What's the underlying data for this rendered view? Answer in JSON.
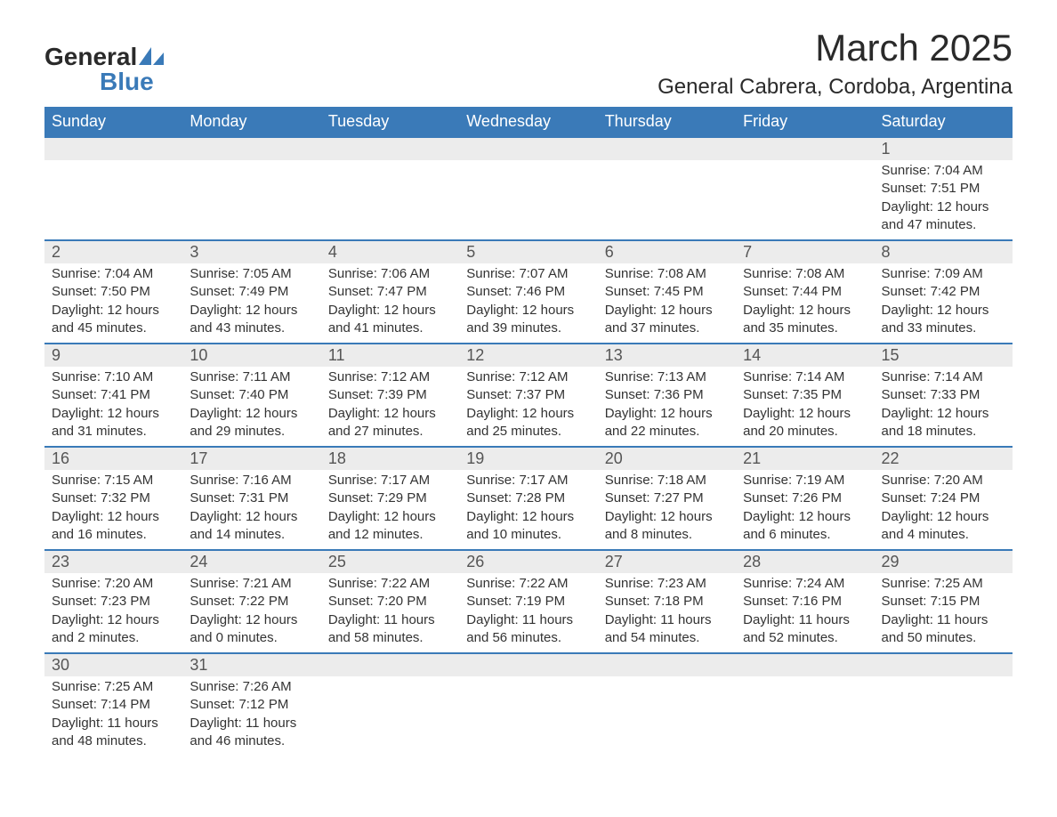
{
  "brand": {
    "text_top": "General",
    "text_bottom": "Blue",
    "accent_color": "#3a7ab8"
  },
  "title": "March 2025",
  "location": "General Cabrera, Cordoba, Argentina",
  "weekdays": [
    "Sunday",
    "Monday",
    "Tuesday",
    "Wednesday",
    "Thursday",
    "Friday",
    "Saturday"
  ],
  "style": {
    "header_bg": "#3a7ab8",
    "header_fg": "#ffffff",
    "daynum_bg": "#ececec",
    "row_divider": "#3a7ab8",
    "body_bg": "#ffffff",
    "text_color": "#333333",
    "title_fontsize": 42,
    "location_fontsize": 24,
    "weekday_fontsize": 18,
    "daynum_fontsize": 18,
    "info_fontsize": 15
  },
  "weeks": [
    [
      null,
      null,
      null,
      null,
      null,
      null,
      {
        "n": "1",
        "sr": "Sunrise: 7:04 AM",
        "ss": "Sunset: 7:51 PM",
        "dl": "Daylight: 12 hours and 47 minutes."
      }
    ],
    [
      {
        "n": "2",
        "sr": "Sunrise: 7:04 AM",
        "ss": "Sunset: 7:50 PM",
        "dl": "Daylight: 12 hours and 45 minutes."
      },
      {
        "n": "3",
        "sr": "Sunrise: 7:05 AM",
        "ss": "Sunset: 7:49 PM",
        "dl": "Daylight: 12 hours and 43 minutes."
      },
      {
        "n": "4",
        "sr": "Sunrise: 7:06 AM",
        "ss": "Sunset: 7:47 PM",
        "dl": "Daylight: 12 hours and 41 minutes."
      },
      {
        "n": "5",
        "sr": "Sunrise: 7:07 AM",
        "ss": "Sunset: 7:46 PM",
        "dl": "Daylight: 12 hours and 39 minutes."
      },
      {
        "n": "6",
        "sr": "Sunrise: 7:08 AM",
        "ss": "Sunset: 7:45 PM",
        "dl": "Daylight: 12 hours and 37 minutes."
      },
      {
        "n": "7",
        "sr": "Sunrise: 7:08 AM",
        "ss": "Sunset: 7:44 PM",
        "dl": "Daylight: 12 hours and 35 minutes."
      },
      {
        "n": "8",
        "sr": "Sunrise: 7:09 AM",
        "ss": "Sunset: 7:42 PM",
        "dl": "Daylight: 12 hours and 33 minutes."
      }
    ],
    [
      {
        "n": "9",
        "sr": "Sunrise: 7:10 AM",
        "ss": "Sunset: 7:41 PM",
        "dl": "Daylight: 12 hours and 31 minutes."
      },
      {
        "n": "10",
        "sr": "Sunrise: 7:11 AM",
        "ss": "Sunset: 7:40 PM",
        "dl": "Daylight: 12 hours and 29 minutes."
      },
      {
        "n": "11",
        "sr": "Sunrise: 7:12 AM",
        "ss": "Sunset: 7:39 PM",
        "dl": "Daylight: 12 hours and 27 minutes."
      },
      {
        "n": "12",
        "sr": "Sunrise: 7:12 AM",
        "ss": "Sunset: 7:37 PM",
        "dl": "Daylight: 12 hours and 25 minutes."
      },
      {
        "n": "13",
        "sr": "Sunrise: 7:13 AM",
        "ss": "Sunset: 7:36 PM",
        "dl": "Daylight: 12 hours and 22 minutes."
      },
      {
        "n": "14",
        "sr": "Sunrise: 7:14 AM",
        "ss": "Sunset: 7:35 PM",
        "dl": "Daylight: 12 hours and 20 minutes."
      },
      {
        "n": "15",
        "sr": "Sunrise: 7:14 AM",
        "ss": "Sunset: 7:33 PM",
        "dl": "Daylight: 12 hours and 18 minutes."
      }
    ],
    [
      {
        "n": "16",
        "sr": "Sunrise: 7:15 AM",
        "ss": "Sunset: 7:32 PM",
        "dl": "Daylight: 12 hours and 16 minutes."
      },
      {
        "n": "17",
        "sr": "Sunrise: 7:16 AM",
        "ss": "Sunset: 7:31 PM",
        "dl": "Daylight: 12 hours and 14 minutes."
      },
      {
        "n": "18",
        "sr": "Sunrise: 7:17 AM",
        "ss": "Sunset: 7:29 PM",
        "dl": "Daylight: 12 hours and 12 minutes."
      },
      {
        "n": "19",
        "sr": "Sunrise: 7:17 AM",
        "ss": "Sunset: 7:28 PM",
        "dl": "Daylight: 12 hours and 10 minutes."
      },
      {
        "n": "20",
        "sr": "Sunrise: 7:18 AM",
        "ss": "Sunset: 7:27 PM",
        "dl": "Daylight: 12 hours and 8 minutes."
      },
      {
        "n": "21",
        "sr": "Sunrise: 7:19 AM",
        "ss": "Sunset: 7:26 PM",
        "dl": "Daylight: 12 hours and 6 minutes."
      },
      {
        "n": "22",
        "sr": "Sunrise: 7:20 AM",
        "ss": "Sunset: 7:24 PM",
        "dl": "Daylight: 12 hours and 4 minutes."
      }
    ],
    [
      {
        "n": "23",
        "sr": "Sunrise: 7:20 AM",
        "ss": "Sunset: 7:23 PM",
        "dl": "Daylight: 12 hours and 2 minutes."
      },
      {
        "n": "24",
        "sr": "Sunrise: 7:21 AM",
        "ss": "Sunset: 7:22 PM",
        "dl": "Daylight: 12 hours and 0 minutes."
      },
      {
        "n": "25",
        "sr": "Sunrise: 7:22 AM",
        "ss": "Sunset: 7:20 PM",
        "dl": "Daylight: 11 hours and 58 minutes."
      },
      {
        "n": "26",
        "sr": "Sunrise: 7:22 AM",
        "ss": "Sunset: 7:19 PM",
        "dl": "Daylight: 11 hours and 56 minutes."
      },
      {
        "n": "27",
        "sr": "Sunrise: 7:23 AM",
        "ss": "Sunset: 7:18 PM",
        "dl": "Daylight: 11 hours and 54 minutes."
      },
      {
        "n": "28",
        "sr": "Sunrise: 7:24 AM",
        "ss": "Sunset: 7:16 PM",
        "dl": "Daylight: 11 hours and 52 minutes."
      },
      {
        "n": "29",
        "sr": "Sunrise: 7:25 AM",
        "ss": "Sunset: 7:15 PM",
        "dl": "Daylight: 11 hours and 50 minutes."
      }
    ],
    [
      {
        "n": "30",
        "sr": "Sunrise: 7:25 AM",
        "ss": "Sunset: 7:14 PM",
        "dl": "Daylight: 11 hours and 48 minutes."
      },
      {
        "n": "31",
        "sr": "Sunrise: 7:26 AM",
        "ss": "Sunset: 7:12 PM",
        "dl": "Daylight: 11 hours and 46 minutes."
      },
      null,
      null,
      null,
      null,
      null
    ]
  ]
}
